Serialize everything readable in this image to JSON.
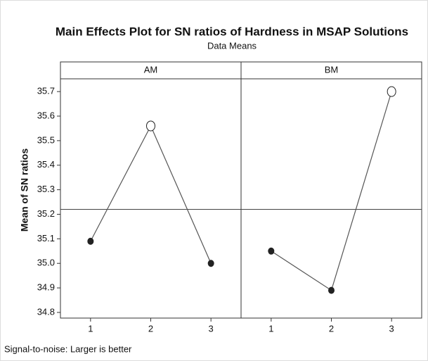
{
  "chart_data": {
    "type": "line",
    "title": "Main Effects Plot for SN ratios of Hardness in MSAP Solutions",
    "subtitle": "Data Means",
    "ylabel": "Mean of SN ratios",
    "footnote": "Signal-to-noise: Larger is better",
    "categories": [
      "1",
      "2",
      "3"
    ],
    "panels": [
      {
        "name": "AM",
        "values": [
          35.09,
          35.56,
          35.0
        ]
      },
      {
        "name": "BM",
        "values": [
          35.05,
          34.89,
          35.7
        ]
      }
    ],
    "color": "#222222",
    "reference_line": 35.22,
    "ylim": [
      34.777,
      35.752
    ],
    "yticks": [
      34.8,
      34.9,
      {
        "value": 35,
        "label": "35.0"
      },
      35.1,
      35.2,
      35.3,
      35.4,
      35.5,
      35.6,
      35.7
    ]
  }
}
